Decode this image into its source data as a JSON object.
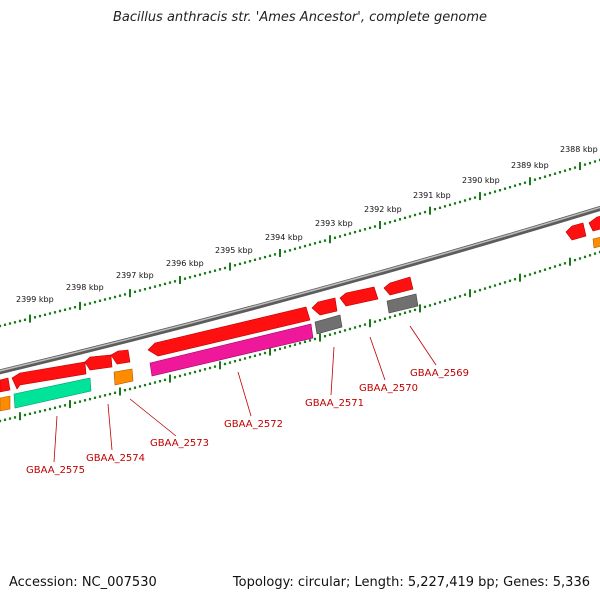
{
  "title": "Bacillus anthracis str. 'Ames Ancestor', complete genome",
  "footer": {
    "accession": "Accession: NC_007530",
    "summary": "Topology: circular; Length: 5,227,419 bp; Genes: 5,336"
  },
  "ruler_labels": [
    "2399 kbp",
    "2398 kbp",
    "2397 kbp",
    "2396 kbp",
    "2395 kbp",
    "2394 kbp",
    "2393 kbp",
    "2392 kbp",
    "2391 kbp",
    "2390 kbp",
    "2389 kbp",
    "2388 kbp"
  ],
  "gene_labels": [
    "GBAA_2575",
    "GBAA_2574",
    "GBAA_2573",
    "GBAA_2572",
    "GBAA_2571",
    "GBAA_2570",
    "GBAA_2569"
  ],
  "colors": {
    "cds": "#ff1010",
    "cds_dark": "#b80000",
    "teal": "#00e49a",
    "pink": "#f0189a",
    "orange": "#ff8c00",
    "gray": "#707070",
    "backbone": "#8a8a8a",
    "tick": "#1a7a1a",
    "label": "#c00000"
  }
}
